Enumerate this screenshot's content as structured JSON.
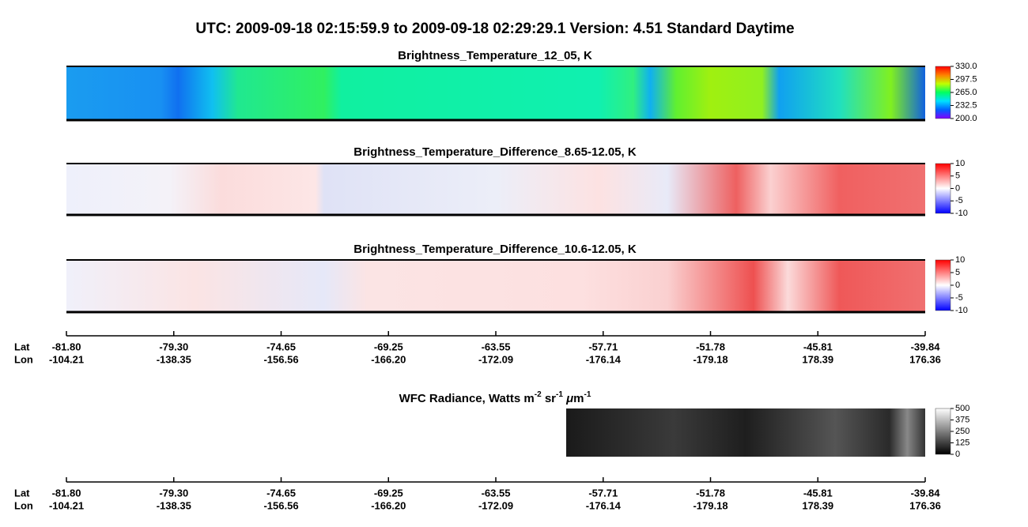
{
  "header": {
    "title": "UTC:  2009-09-18   02:15:59.9  to  2009-09-18   02:29:29.1    Version: 4.51  Standard Daytime"
  },
  "panels": [
    {
      "title": [
        "Brightness_Temperature_12_05, K"
      ],
      "colorbar": {
        "lim": [
          200,
          330
        ],
        "colors": [
          "#8000ff",
          "#0060ff",
          "#00e0ff",
          "#00ff60",
          "#c0ff00",
          "#ff8000",
          "#ff0000"
        ],
        "ticks": [
          {
            "value": 330,
            "label": "330.0"
          },
          {
            "value": 297.5,
            "label": "297.5"
          },
          {
            "value": 265,
            "label": "265.0"
          },
          {
            "value": 232.5,
            "label": "232.5"
          },
          {
            "value": 200,
            "label": "200.0"
          }
        ]
      }
    },
    {
      "title": [
        "Brightness_Temperature_Difference_8.65-12.05, K"
      ],
      "colorbar": {
        "lim": [
          -10,
          10
        ],
        "colors": [
          "#0000ff",
          "#ffffff",
          "#ff0000"
        ],
        "ticks": [
          10,
          5,
          0,
          -5,
          -10
        ]
      }
    },
    {
      "title": [
        "Brightness_Temperature_Difference_10.6-12.05, K"
      ],
      "colorbar": {
        "lim": [
          -10,
          10
        ],
        "colors": [
          "#0000ff",
          "#ffffff",
          "#ff0000"
        ],
        "ticks": [
          10,
          5,
          0,
          -5,
          -10
        ]
      }
    },
    {
      "title": [
        "WFC Radiance, Watts m",
        "-2",
        " sr",
        "-1",
        " ",
        "μ",
        "m",
        "-1"
      ],
      "colorbar": {
        "lim": [
          0,
          500
        ],
        "colors": [
          "#000000",
          "#ffffff"
        ],
        "ticks": [
          500,
          375,
          250,
          125,
          0
        ]
      }
    }
  ],
  "axes": [
    {
      "lat_label": "Lat",
      "lon_label": "Lon",
      "lat": [
        "-81.80",
        "-79.30",
        "-74.65",
        "-69.25",
        "-63.55",
        "-57.71",
        "-51.78",
        "-45.81",
        "-39.84"
      ],
      "lon": [
        "-104.21",
        "-138.35",
        "-156.56",
        "-166.20",
        "-172.09",
        "-176.14",
        "-179.18",
        "178.39",
        "176.36"
      ]
    },
    {
      "lat_label": "Lat",
      "lon_label": "Lon",
      "lat": [
        "-81.80",
        "-79.30",
        "-74.65",
        "-69.25",
        "-63.55",
        "-57.71",
        "-51.78",
        "-45.81",
        "-39.84"
      ],
      "lon": [
        "-104.21",
        "-138.35",
        "-156.56",
        "-166.20",
        "-172.09",
        "-176.14",
        "-179.18",
        "178.39",
        "176.36"
      ]
    }
  ]
}
